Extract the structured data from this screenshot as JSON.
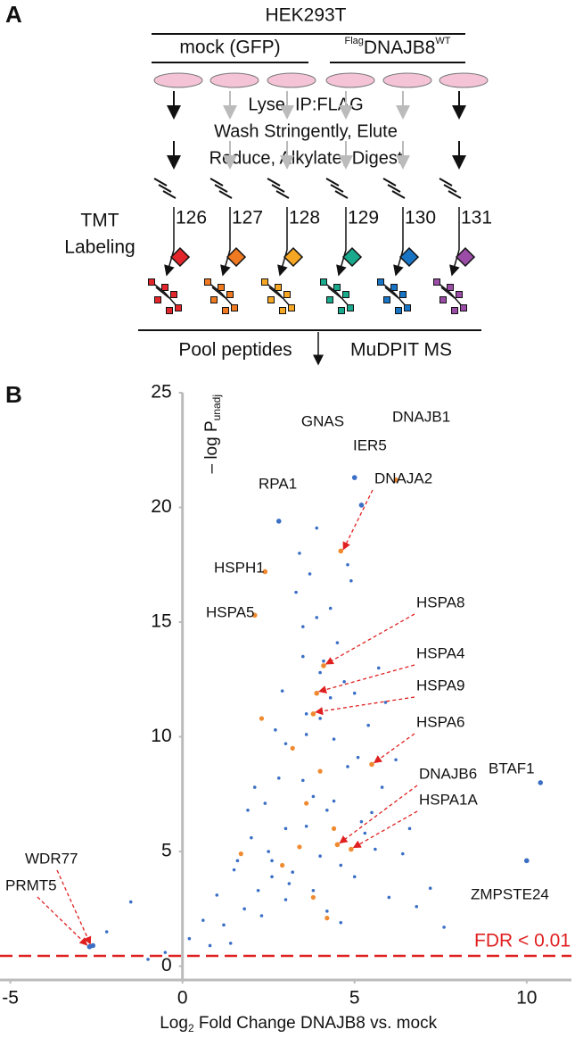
{
  "panel_labels": [
    "A",
    "B"
  ],
  "panel_a": {
    "cell_line": "HEK293T",
    "control": "mock (GFP)",
    "bait": {
      "prefix": "Flag",
      "name": "DNAJB8",
      "suffix": "WT"
    },
    "steps": [
      "Lyse, IP:FLAG",
      "Wash Stringently, Elute",
      "Reduce, Alkylate, Digest"
    ],
    "labeling": [
      "TMT",
      "Labeling"
    ],
    "tags": [
      {
        "label": "126",
        "color": "#e3262b"
      },
      {
        "label": "127",
        "color": "#f07a22"
      },
      {
        "label": "128",
        "color": "#f5a623"
      },
      {
        "label": "129",
        "color": "#19a98c"
      },
      {
        "label": "130",
        "color": "#1a74c4"
      },
      {
        "label": "131",
        "color": "#9a4ca6"
      }
    ],
    "pool": "Pool peptides",
    "ms": "MuDPIT MS"
  },
  "chart_data": {
    "type": "scatter",
    "x_label": {
      "main": "Log",
      "sub": "2",
      "rest": " Fold Change DNAJB8 vs. mock"
    },
    "y_label": {
      "main": "– log P",
      "sub": "unadj"
    },
    "xlim": [
      -5.3,
      11.3
    ],
    "ylim": [
      -0.6,
      25
    ],
    "xticks": [
      -5,
      0,
      5,
      10
    ],
    "yticks": [
      0,
      5,
      10,
      15,
      20,
      25
    ],
    "threshold": {
      "value": 0.45,
      "label": "FDR < 0.01",
      "color": "#e02020"
    },
    "series": [
      {
        "color": "#3b6fc6",
        "x": [
          -2.2,
          -1.5,
          -1.0,
          -0.5,
          0.2,
          0.6,
          1.0,
          1.2,
          1.5,
          1.8,
          2.0,
          2.2,
          2.4,
          2.6,
          2.8,
          3.0,
          3.2,
          3.4,
          3.6,
          3.8,
          4.0,
          4.2,
          4.4,
          4.6,
          4.8,
          5.0,
          5.2,
          5.4,
          5.6,
          5.8,
          6.0,
          6.4,
          6.8,
          7.2,
          1.4,
          1.9,
          2.3,
          2.7,
          3.1,
          3.5,
          3.9,
          4.3,
          4.7,
          5.1,
          5.5,
          2.5,
          3.0,
          3.5,
          4.0,
          4.5,
          5.0,
          3.3,
          3.7,
          4.1,
          2.9,
          3.6,
          4.4,
          3.2,
          3.8,
          4.2,
          4.6,
          5.3,
          6.2,
          0.8,
          1.6,
          2.1,
          3.4,
          4.9,
          5.7,
          3.0,
          3.6,
          4.3,
          2.6,
          3.9,
          4.8,
          3.5,
          4.0,
          5.9,
          6.6,
          7.6
        ],
        "values": [
          1.5,
          2.8,
          0.3,
          0.6,
          1.2,
          2.0,
          3.1,
          1.8,
          4.2,
          2.5,
          5.6,
          3.3,
          7.1,
          4.6,
          8.2,
          6.0,
          9.5,
          5.2,
          11.0,
          7.4,
          12.8,
          6.8,
          9.9,
          4.4,
          8.7,
          3.9,
          6.3,
          10.5,
          5.1,
          7.8,
          3.0,
          4.9,
          2.6,
          3.4,
          1.0,
          6.8,
          2.2,
          10.3,
          3.6,
          13.5,
          15.2,
          11.7,
          12.4,
          9.1,
          6.7,
          5.0,
          2.9,
          8.1,
          4.8,
          14.1,
          11.9,
          16.3,
          17.1,
          13.3,
          12.0,
          10.1,
          7.2,
          4.1,
          3.3,
          2.4,
          1.9,
          5.8,
          9.0,
          0.9,
          4.6,
          7.8,
          18.0,
          16.8,
          13.0,
          9.7,
          6.1,
          15.6,
          3.9,
          19.1,
          17.5,
          14.8,
          10.8,
          11.5,
          6.0,
          1.7
        ]
      },
      {
        "color": "#f08a30",
        "x": [
          2.3,
          3.2,
          3.6,
          4.0,
          4.4,
          2.9,
          3.8,
          4.2,
          3.4,
          1.7
        ],
        "values": [
          10.8,
          9.5,
          7.1,
          8.5,
          6.0,
          4.4,
          3.0,
          2.1,
          5.2,
          4.9
        ]
      }
    ],
    "annotations": [
      {
        "label": "GNAS",
        "x": 5.0,
        "y": 21.3,
        "color": "#3b6fc6"
      },
      {
        "label": "DNAJB1",
        "x": 6.2,
        "y": 21.2,
        "color": "#f08a30"
      },
      {
        "label": "IER5",
        "x": 5.2,
        "y": 20.1,
        "color": "#3b6fc6"
      },
      {
        "label": "RPA1",
        "x": 2.8,
        "y": 19.4,
        "color": "#3b6fc6"
      },
      {
        "label": "DNAJA2",
        "x": 4.6,
        "y": 18.1,
        "color": "#f08a30"
      },
      {
        "label": "HSPH1",
        "x": 2.4,
        "y": 17.2,
        "color": "#f08a30"
      },
      {
        "label": "HSPA5",
        "x": 2.1,
        "y": 15.3,
        "color": "#f08a30"
      },
      {
        "label": "HSPA8",
        "x": 4.1,
        "y": 13.1,
        "color": "#f08a30"
      },
      {
        "label": "HSPA4",
        "x": 3.9,
        "y": 11.9,
        "color": "#f08a30"
      },
      {
        "label": "HSPA9",
        "x": 3.8,
        "y": 11.0,
        "color": "#f08a30"
      },
      {
        "label": "HSPA6",
        "x": 5.5,
        "y": 8.8,
        "color": "#f08a30"
      },
      {
        "label": "DNAJB6",
        "x": 4.5,
        "y": 5.3,
        "color": "#f08a30"
      },
      {
        "label": "HSPA1A",
        "x": 4.9,
        "y": 5.1,
        "color": "#f08a30"
      },
      {
        "label": "BTAF1",
        "x": 10.4,
        "y": 8.0,
        "color": "#3b6fc6"
      },
      {
        "label": "ZMPSTE24",
        "x": 10.0,
        "y": 4.6,
        "color": "#3b6fc6"
      },
      {
        "label": "WDR77",
        "x": -2.6,
        "y": 0.9,
        "color": "#3b6fc6"
      },
      {
        "label": "PRMT5",
        "x": -2.7,
        "y": 0.85,
        "color": "#3b6fc6"
      }
    ]
  }
}
